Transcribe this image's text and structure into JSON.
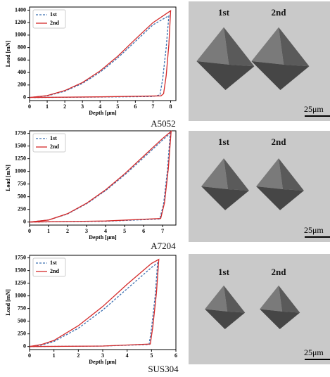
{
  "chart_data": [
    {
      "type": "line",
      "xlabel": "Depth [μm]",
      "ylabel": "Load [mN]",
      "legend": "upper left",
      "grid": false,
      "xlim": [
        0,
        8.3
      ],
      "xticks": [
        0,
        1,
        2,
        3,
        4,
        5,
        6,
        7,
        8
      ],
      "ylim": [
        -50,
        1450
      ],
      "yticks": [
        0,
        200,
        400,
        600,
        800,
        1000,
        1200,
        1400
      ],
      "series": [
        {
          "name": "1st",
          "color": "#3a6fb0",
          "dash": true,
          "x": [
            0,
            1,
            2,
            3,
            4,
            5,
            6,
            7,
            7.9,
            7.75,
            7.55,
            7.4,
            7.0,
            3.5,
            0.2
          ],
          "values": [
            0,
            25,
            100,
            225,
            405,
            635,
            900,
            1165,
            1310,
            800,
            300,
            40,
            15,
            5,
            0
          ]
        },
        {
          "name": "2nd",
          "color": "#d42a2a",
          "dash": false,
          "x": [
            0,
            1,
            2,
            3,
            4,
            5,
            6,
            7,
            8.0,
            7.9,
            7.75,
            7.6,
            7.45,
            4,
            0
          ],
          "values": [
            0,
            30,
            110,
            240,
            425,
            660,
            935,
            1200,
            1390,
            850,
            350,
            60,
            25,
            10,
            0
          ]
        }
      ]
    },
    {
      "type": "line",
      "xlabel": "Depth [μm]",
      "ylabel": "Load [mN]",
      "legend": "upper left",
      "grid": false,
      "xlim": [
        0,
        7.7
      ],
      "xticks": [
        0,
        1,
        2,
        3,
        4,
        5,
        6,
        7
      ],
      "ylim": [
        -60,
        1800
      ],
      "yticks": [
        0,
        250,
        500,
        750,
        1000,
        1250,
        1500,
        1750
      ],
      "series": [
        {
          "name": "1st",
          "color": "#3a6fb0",
          "dash": true,
          "x": [
            0,
            1,
            2,
            3,
            4,
            5,
            6,
            7,
            7.4,
            7.25,
            7.05,
            6.85,
            4,
            0
          ],
          "values": [
            0,
            40,
            160,
            360,
            620,
            930,
            1270,
            1620,
            1750,
            1000,
            350,
            60,
            15,
            0
          ]
        },
        {
          "name": "2nd",
          "color": "#d42a2a",
          "dash": false,
          "x": [
            0,
            1,
            2,
            3,
            4,
            5,
            6,
            7,
            7.45,
            7.3,
            7.1,
            6.9,
            4,
            0
          ],
          "values": [
            0,
            40,
            165,
            370,
            635,
            950,
            1300,
            1650,
            1790,
            1050,
            380,
            70,
            20,
            0
          ]
        }
      ]
    },
    {
      "type": "line",
      "xlabel": "Depth [μm]",
      "ylabel": "Load [mN]",
      "legend": "upper left",
      "grid": false,
      "xlim": [
        0,
        6
      ],
      "xticks": [
        0,
        1,
        2,
        3,
        4,
        5,
        6
      ],
      "ylim": [
        -60,
        1800
      ],
      "yticks": [
        0,
        250,
        500,
        750,
        1000,
        1250,
        1500,
        1750
      ],
      "series": [
        {
          "name": "1st",
          "color": "#3a6fb0",
          "dash": true,
          "x": [
            0,
            0.5,
            1,
            2,
            3,
            4,
            5,
            5.25,
            5.15,
            5.0,
            4.9,
            3,
            0
          ],
          "values": [
            0,
            30,
            100,
            360,
            720,
            1140,
            1560,
            1650,
            1000,
            350,
            40,
            10,
            0
          ]
        },
        {
          "name": "2nd",
          "color": "#d42a2a",
          "dash": false,
          "x": [
            0,
            0.5,
            1,
            2,
            3,
            4,
            5,
            5.3,
            5.2,
            5.05,
            4.95,
            3,
            0
          ],
          "values": [
            0,
            40,
            120,
            410,
            790,
            1230,
            1640,
            1720,
            1050,
            380,
            50,
            10,
            0
          ]
        }
      ]
    }
  ],
  "panels": [
    {
      "caption": "A5052",
      "labels": [
        "1st",
        "2nd"
      ],
      "scale": "25μm"
    },
    {
      "caption": "A7204",
      "labels": [
        "1st",
        "2nd"
      ],
      "scale": "25μm"
    },
    {
      "caption": "SUS304",
      "labels": [
        "1st",
        "2nd"
      ],
      "scale": "25μm"
    }
  ]
}
